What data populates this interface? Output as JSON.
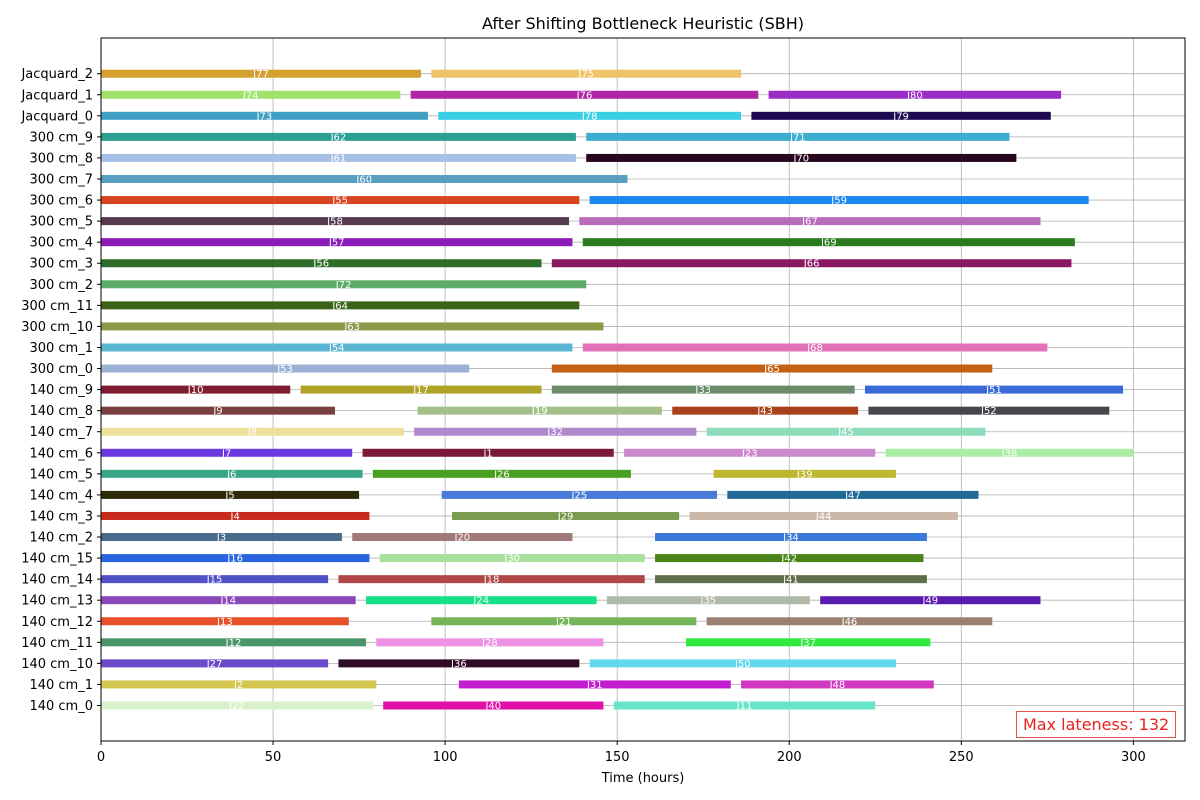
{
  "chart_data": {
    "type": "gantt",
    "title": "After Shifting Bottleneck Heuristic (SBH)",
    "xlabel": "Time (hours)",
    "ylabel": "",
    "xlim": [
      0,
      315
    ],
    "xticks": [
      0,
      50,
      100,
      150,
      200,
      250,
      300
    ],
    "grid": true,
    "annotation": "Max lateness: 132",
    "annotation_color": "#e8221e",
    "machines": [
      {
        "name": "Jacquard_2",
        "tasks": [
          {
            "job": "J77",
            "start": 0,
            "end": 93,
            "color": "#d4a030"
          },
          {
            "job": "J75",
            "start": 96,
            "end": 186,
            "color": "#eec466"
          }
        ]
      },
      {
        "name": "Jacquard_1",
        "tasks": [
          {
            "job": "J74",
            "start": 0,
            "end": 87,
            "color": "#9fe26a"
          },
          {
            "job": "J76",
            "start": 90,
            "end": 191,
            "color": "#b025a8"
          },
          {
            "job": "J80",
            "start": 194,
            "end": 279,
            "color": "#9a2dc4"
          }
        ]
      },
      {
        "name": "Jacquard_0",
        "tasks": [
          {
            "job": "J73",
            "start": 0,
            "end": 95,
            "color": "#3fa0c6"
          },
          {
            "job": "J78",
            "start": 98,
            "end": 186,
            "color": "#3acfe7"
          },
          {
            "job": "J79",
            "start": 189,
            "end": 276,
            "color": "#1d0a50"
          }
        ]
      },
      {
        "name": "300 cm_9",
        "tasks": [
          {
            "job": "J62",
            "start": 0,
            "end": 138,
            "color": "#2aa092"
          },
          {
            "job": "J71",
            "start": 141,
            "end": 264,
            "color": "#3eaed0"
          }
        ]
      },
      {
        "name": "300 cm_8",
        "tasks": [
          {
            "job": "J61",
            "start": 0,
            "end": 138,
            "color": "#a8bfe8"
          },
          {
            "job": "J70",
            "start": 141,
            "end": 266,
            "color": "#28081e"
          }
        ]
      },
      {
        "name": "300 cm_7",
        "tasks": [
          {
            "job": "J60",
            "start": 0,
            "end": 153,
            "color": "#5a9fc2"
          }
        ]
      },
      {
        "name": "300 cm_6",
        "tasks": [
          {
            "job": "J55",
            "start": 0,
            "end": 139,
            "color": "#d94520"
          },
          {
            "job": "J59",
            "start": 142,
            "end": 287,
            "color": "#1a88f0"
          }
        ]
      },
      {
        "name": "300 cm_5",
        "tasks": [
          {
            "job": "J58",
            "start": 0,
            "end": 136,
            "color": "#563a50"
          },
          {
            "job": "J67",
            "start": 139,
            "end": 273,
            "color": "#b86cbc"
          }
        ]
      },
      {
        "name": "300 cm_4",
        "tasks": [
          {
            "job": "J57",
            "start": 0,
            "end": 137,
            "color": "#8a1cb8"
          },
          {
            "job": "J69",
            "start": 140,
            "end": 283,
            "color": "#2a7a20"
          }
        ]
      },
      {
        "name": "300 cm_3",
        "tasks": [
          {
            "job": "J56",
            "start": 0,
            "end": 128,
            "color": "#2e6e2a"
          },
          {
            "job": "J66",
            "start": 131,
            "end": 282,
            "color": "#8a1860"
          }
        ]
      },
      {
        "name": "300 cm_2",
        "tasks": [
          {
            "job": "J72",
            "start": 0,
            "end": 141,
            "color": "#5cab68"
          }
        ]
      },
      {
        "name": "300 cm_11",
        "tasks": [
          {
            "job": "J64",
            "start": 0,
            "end": 139,
            "color": "#3c6418"
          }
        ]
      },
      {
        "name": "300 cm_10",
        "tasks": [
          {
            "job": "J63",
            "start": 0,
            "end": 146,
            "color": "#8a9a48"
          }
        ]
      },
      {
        "name": "300 cm_1",
        "tasks": [
          {
            "job": "J54",
            "start": 0,
            "end": 137,
            "color": "#5ab4d2"
          },
          {
            "job": "J68",
            "start": 140,
            "end": 275,
            "color": "#e070b8"
          }
        ]
      },
      {
        "name": "300 cm_0",
        "tasks": [
          {
            "job": "J53",
            "start": 0,
            "end": 107,
            "color": "#9ab0d4"
          },
          {
            "job": "J65",
            "start": 131,
            "end": 259,
            "color": "#c46014"
          }
        ]
      },
      {
        "name": "140 cm_9",
        "tasks": [
          {
            "job": "J10",
            "start": 0,
            "end": 55,
            "color": "#7e1e30"
          },
          {
            "job": "J17",
            "start": 58,
            "end": 128,
            "color": "#b0a428"
          },
          {
            "job": "J33",
            "start": 131,
            "end": 219,
            "color": "#6a8a6a"
          },
          {
            "job": "J51",
            "start": 222,
            "end": 297,
            "color": "#3a6ad8"
          }
        ]
      },
      {
        "name": "140 cm_8",
        "tasks": [
          {
            "job": "J9",
            "start": 0,
            "end": 68,
            "color": "#7a4040"
          },
          {
            "job": "J19",
            "start": 92,
            "end": 163,
            "color": "#a4c08a"
          },
          {
            "job": "J43",
            "start": 166,
            "end": 220,
            "color": "#a8401a"
          },
          {
            "job": "J52",
            "start": 223,
            "end": 293,
            "color": "#46464e"
          }
        ]
      },
      {
        "name": "140 cm_7",
        "tasks": [
          {
            "job": "J8",
            "start": 0,
            "end": 88,
            "color": "#ede09a"
          },
          {
            "job": "J32",
            "start": 91,
            "end": 173,
            "color": "#b088cc"
          },
          {
            "job": "J45",
            "start": 176,
            "end": 257,
            "color": "#8edcbc"
          }
        ]
      },
      {
        "name": "140 cm_6",
        "tasks": [
          {
            "job": "J7",
            "start": 0,
            "end": 73,
            "color": "#6a3ae0"
          },
          {
            "job": "J1",
            "start": 76,
            "end": 149,
            "color": "#7a1838"
          },
          {
            "job": "J23",
            "start": 152,
            "end": 225,
            "color": "#cc88cc"
          },
          {
            "job": "J38",
            "start": 228,
            "end": 300,
            "color": "#aaeea4"
          }
        ]
      },
      {
        "name": "140 cm_5",
        "tasks": [
          {
            "job": "J6",
            "start": 0,
            "end": 76,
            "color": "#3aa888"
          },
          {
            "job": "J26",
            "start": 79,
            "end": 154,
            "color": "#48a020"
          },
          {
            "job": "J39",
            "start": 178,
            "end": 231,
            "color": "#bcb830"
          }
        ]
      },
      {
        "name": "140 cm_4",
        "tasks": [
          {
            "job": "J5",
            "start": 0,
            "end": 75,
            "color": "#2c2a08"
          },
          {
            "job": "J25",
            "start": 99,
            "end": 179,
            "color": "#4a7ad8"
          },
          {
            "job": "J47",
            "start": 182,
            "end": 255,
            "color": "#206a98"
          }
        ]
      },
      {
        "name": "140 cm_3",
        "tasks": [
          {
            "job": "J4",
            "start": 0,
            "end": 78,
            "color": "#c82a1e"
          },
          {
            "job": "J29",
            "start": 102,
            "end": 168,
            "color": "#7a9a50"
          },
          {
            "job": "J44",
            "start": 171,
            "end": 249,
            "color": "#ccb8a8"
          }
        ]
      },
      {
        "name": "140 cm_2",
        "tasks": [
          {
            "job": "J3",
            "start": 0,
            "end": 70,
            "color": "#4a6a8c"
          },
          {
            "job": "J20",
            "start": 73,
            "end": 137,
            "color": "#a07a78"
          },
          {
            "job": "J34",
            "start": 161,
            "end": 240,
            "color": "#3a7ad8"
          }
        ]
      },
      {
        "name": "140 cm_15",
        "tasks": [
          {
            "job": "J16",
            "start": 0,
            "end": 78,
            "color": "#2a64e0"
          },
          {
            "job": "J30",
            "start": 81,
            "end": 158,
            "color": "#a8e09c"
          },
          {
            "job": "J42",
            "start": 161,
            "end": 239,
            "color": "#4a8418"
          }
        ]
      },
      {
        "name": "140 cm_14",
        "tasks": [
          {
            "job": "J15",
            "start": 0,
            "end": 66,
            "color": "#5252c8"
          },
          {
            "job": "J18",
            "start": 69,
            "end": 158,
            "color": "#b04848"
          },
          {
            "job": "J41",
            "start": 161,
            "end": 240,
            "color": "#5e6e4a"
          }
        ]
      },
      {
        "name": "140 cm_13",
        "tasks": [
          {
            "job": "J14",
            "start": 0,
            "end": 74,
            "color": "#8a48b8"
          },
          {
            "job": "J24",
            "start": 77,
            "end": 144,
            "color": "#18e088"
          },
          {
            "job": "J35",
            "start": 147,
            "end": 206,
            "color": "#b0b8a8"
          },
          {
            "job": "J49",
            "start": 209,
            "end": 273,
            "color": "#5a1ab0"
          }
        ]
      },
      {
        "name": "140 cm_12",
        "tasks": [
          {
            "job": "J13",
            "start": 0,
            "end": 72,
            "color": "#e8502a"
          },
          {
            "job": "J21",
            "start": 96,
            "end": 173,
            "color": "#74b45a"
          },
          {
            "job": "J46",
            "start": 176,
            "end": 259,
            "color": "#9a8070"
          }
        ]
      },
      {
        "name": "140 cm_11",
        "tasks": [
          {
            "job": "J12",
            "start": 0,
            "end": 77,
            "color": "#4a946a"
          },
          {
            "job": "J28",
            "start": 80,
            "end": 146,
            "color": "#ee90e4"
          },
          {
            "job": "J37",
            "start": 170,
            "end": 241,
            "color": "#30e840"
          }
        ]
      },
      {
        "name": "140 cm_10",
        "tasks": [
          {
            "job": "J27",
            "start": 0,
            "end": 66,
            "color": "#6a4ac8"
          },
          {
            "job": "J36",
            "start": 69,
            "end": 139,
            "color": "#300c28"
          },
          {
            "job": "J50",
            "start": 142,
            "end": 231,
            "color": "#62d8ee"
          }
        ]
      },
      {
        "name": "140 cm_1",
        "tasks": [
          {
            "job": "J2",
            "start": 0,
            "end": 80,
            "color": "#d4c650"
          },
          {
            "job": "J31",
            "start": 104,
            "end": 183,
            "color": "#c41cd0"
          },
          {
            "job": "J48",
            "start": 186,
            "end": 242,
            "color": "#d038c0"
          }
        ]
      },
      {
        "name": "140 cm_0",
        "tasks": [
          {
            "job": "J22",
            "start": 0,
            "end": 79,
            "color": "#d8f0cc"
          },
          {
            "job": "J40",
            "start": 82,
            "end": 146,
            "color": "#e010a8"
          },
          {
            "job": "J11",
            "start": 149,
            "end": 225,
            "color": "#68e4c8"
          }
        ]
      }
    ]
  }
}
